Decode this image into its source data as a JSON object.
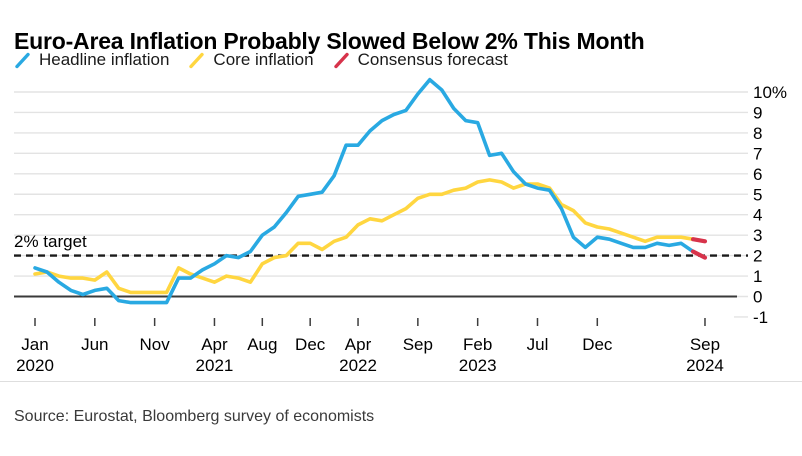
{
  "title": "Euro-Area Inflation Probably Slowed Below 2% This Month",
  "legend": {
    "items": [
      {
        "label": "Headline inflation",
        "color": "#29A9E2"
      },
      {
        "label": "Core inflation",
        "color": "#FFD640"
      },
      {
        "label": "Consensus forecast",
        "color": "#D7334B"
      }
    ]
  },
  "annotation": {
    "label": "2% target"
  },
  "source": "Source: Eurostat, Bloomberg survey of economists",
  "chart_data": {
    "type": "line",
    "title": "Euro-Area Inflation Probably Slowed Below 2% This Month",
    "x_start": "2020-01",
    "x_interval": "monthly",
    "x_end_actual": "2024-08",
    "x_forecast_month": "2024-09",
    "y_axis": {
      "unit": "%",
      "ylim": [
        -1,
        10
      ],
      "grid": "horizontal",
      "ticks": [
        {
          "label": "10%",
          "value": 10
        },
        {
          "label": "9",
          "value": 9
        },
        {
          "label": "8",
          "value": 8
        },
        {
          "label": "7",
          "value": 7
        },
        {
          "label": "6",
          "value": 6
        },
        {
          "label": "5",
          "value": 5
        },
        {
          "label": "4",
          "value": 4
        },
        {
          "label": "3",
          "value": 3
        },
        {
          "label": "2",
          "value": 2
        },
        {
          "label": "1",
          "value": 1
        },
        {
          "label": "0",
          "value": 0
        },
        {
          "label": "-1",
          "value": -1
        }
      ]
    },
    "x_ticks": [
      {
        "month": "Jan",
        "year": "2020",
        "offset": 0
      },
      {
        "month": "Jun",
        "year": "",
        "offset": 5
      },
      {
        "month": "Nov",
        "year": "",
        "offset": 10
      },
      {
        "month": "Apr",
        "year": "2021",
        "offset": 15
      },
      {
        "month": "Aug",
        "year": "",
        "offset": 19
      },
      {
        "month": "Dec",
        "year": "",
        "offset": 23
      },
      {
        "month": "Apr",
        "year": "2022",
        "offset": 27
      },
      {
        "month": "Sep",
        "year": "",
        "offset": 32
      },
      {
        "month": "Feb",
        "year": "2023",
        "offset": 37
      },
      {
        "month": "Jul",
        "year": "",
        "offset": 42
      },
      {
        "month": "Dec",
        "year": "",
        "offset": 47
      },
      {
        "month": "Sep",
        "year": "2024",
        "offset": 56
      }
    ],
    "target_line": {
      "label": "2% target",
      "value": 2,
      "style": "dashed"
    },
    "series": [
      {
        "name": "Headline inflation",
        "color": "#29A9E2",
        "values": [
          1.4,
          1.2,
          0.7,
          0.3,
          0.1,
          0.3,
          0.4,
          -0.2,
          -0.3,
          -0.3,
          -0.3,
          -0.3,
          0.9,
          0.9,
          1.3,
          1.6,
          2.0,
          1.9,
          2.2,
          3.0,
          3.4,
          4.1,
          4.9,
          5.0,
          5.1,
          5.9,
          7.4,
          7.4,
          8.1,
          8.6,
          8.9,
          9.1,
          9.9,
          10.6,
          10.1,
          9.2,
          8.6,
          8.5,
          6.9,
          7.0,
          6.1,
          5.5,
          5.3,
          5.2,
          4.3,
          2.9,
          2.4,
          2.9,
          2.8,
          2.6,
          2.4,
          2.4,
          2.6,
          2.5,
          2.6,
          2.2
        ]
      },
      {
        "name": "Core inflation",
        "color": "#FFD640",
        "values": [
          1.1,
          1.2,
          1.0,
          0.9,
          0.9,
          0.8,
          1.2,
          0.4,
          0.2,
          0.2,
          0.2,
          0.2,
          1.4,
          1.1,
          0.9,
          0.7,
          1.0,
          0.9,
          0.7,
          1.6,
          1.9,
          2.0,
          2.6,
          2.6,
          2.3,
          2.7,
          2.9,
          3.5,
          3.8,
          3.7,
          4.0,
          4.3,
          4.8,
          5.0,
          5.0,
          5.2,
          5.3,
          5.6,
          5.7,
          5.6,
          5.3,
          5.5,
          5.5,
          5.3,
          4.5,
          4.2,
          3.6,
          3.4,
          3.3,
          3.1,
          2.9,
          2.7,
          2.9,
          2.9,
          2.9,
          2.8
        ]
      }
    ],
    "forecast": {
      "name": "Consensus forecast",
      "color": "#D7334B",
      "month": "2024-09",
      "points": [
        {
          "series_index": 0,
          "series": "Headline inflation",
          "value": 1.9
        },
        {
          "series_index": 1,
          "series": "Core inflation",
          "value": 2.7
        }
      ]
    },
    "layout": {
      "legend_position": "top",
      "y_labels_side": "right",
      "grid_color": "#E3E3E3",
      "zero_line_color": "#3A3A3A",
      "tick_color": "#3D3D3D",
      "target_line_color": "#1A1A1A",
      "text_color": "#000000"
    }
  }
}
